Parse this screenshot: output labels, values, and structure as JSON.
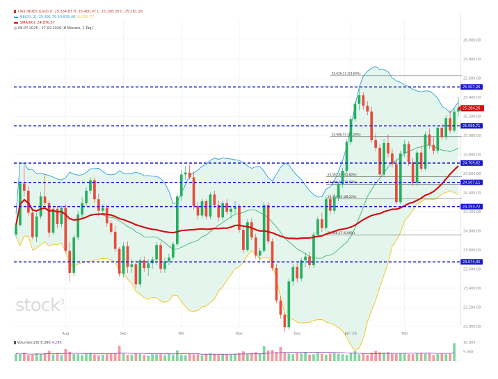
{
  "legend": {
    "main": {
      "symbol": "DAX INDEX",
      "rest": "(Last) O: 25.264,87  H: 25.400,07  L: 25.198,30  C: 25.281,16",
      "color": "#c0392b"
    },
    "bollinger": {
      "text": "BB(20, 2): 25.491,79  24.835,48",
      "pale": "24.350,77",
      "color": "#2a9fd6"
    },
    "sma": {
      "text": "SMA(80): 24.870,57",
      "color": "#cc1010"
    },
    "range": {
      "text": "08.07.2025 - 27.02.2026 (8 Monate, 1 Tag)"
    }
  },
  "watermark": {
    "text": "stock",
    "sup": "3"
  },
  "volume": {
    "label": "Volumen(20) 8,39K",
    "label_pale": "4,29K",
    "axis": [
      "10.000",
      "5.000"
    ]
  },
  "chart_data": {
    "type": "candlestick",
    "title": "DAX INDEX",
    "ylim": [
      23000,
      26200
    ],
    "xlim": [
      0,
      134
    ],
    "grid": true,
    "legend_placement": "top-left",
    "y_ticks": [
      23000,
      23200,
      23400,
      23600,
      23800,
      24000,
      24200,
      24400,
      24600,
      24800,
      25000,
      25200,
      25400,
      25600,
      25800,
      26000
    ],
    "y_tick_labels": [
      "23.000,00",
      "23.200,00",
      "23.400,00",
      "23.600,00",
      "23.800,00",
      "24.000,00",
      "24.200,00",
      "24.400,00",
      "24.600,00",
      "24.800,00",
      "25.000,00",
      "25.200,00",
      "25.400,00",
      "25.600,00",
      "25.800,00",
      "26.000,00"
    ],
    "x_ticks": [
      {
        "x": 12,
        "label": "Aug"
      },
      {
        "x": 26,
        "label": "Sep"
      },
      {
        "x": 40,
        "label": "Okt"
      },
      {
        "x": 54,
        "label": "Nov"
      },
      {
        "x": 68,
        "label": "Dez"
      },
      {
        "x": 81,
        "label": "Jan '26"
      },
      {
        "x": 94,
        "label": "Feb"
      }
    ],
    "horizontal_levels": [
      {
        "value": 25507.26,
        "label": "25.507,26"
      },
      {
        "value": 25099.71,
        "label": "25.099,71"
      },
      {
        "value": 24709.62,
        "label": "24.709,62"
      },
      {
        "value": 24507.11,
        "label": "24.507,11"
      },
      {
        "value": 24253.72,
        "label": "24.253,72"
      },
      {
        "value": 23674.35,
        "label": "23.674,35"
      }
    ],
    "last_price": {
      "value": 25284.26,
      "label": "25.284,26"
    },
    "fib_levels": [
      {
        "value": 25626.13,
        "x0": 76,
        "label": "25.626,13 (23,60%)"
      },
      {
        "value": 24986.73,
        "x0": 76,
        "label": "24.986,73 (38,20%)"
      },
      {
        "value": 24567.3,
        "x0": 75,
        "label": "24.567,30 (61,80%)"
      },
      {
        "value": 24486.4,
        "x0": 75,
        "label": "24.486,40 (78,60%)"
      },
      {
        "value": 24334.0,
        "x0": 75,
        "label": "24.334,00 (88,20%)"
      },
      {
        "value": 23956.17,
        "x0": 75,
        "label": "23.956,17 (0,00%)"
      }
    ],
    "candles": [
      {
        "o": 23960,
        "h": 24095,
        "l": 23935,
        "c": 24060
      },
      {
        "o": 24060,
        "h": 24520,
        "l": 24040,
        "c": 24495
      },
      {
        "o": 24495,
        "h": 24680,
        "l": 24360,
        "c": 24420
      },
      {
        "o": 24420,
        "h": 24470,
        "l": 24160,
        "c": 24190
      },
      {
        "o": 24190,
        "h": 24230,
        "l": 23910,
        "c": 23935
      },
      {
        "o": 23935,
        "h": 24190,
        "l": 23880,
        "c": 24150
      },
      {
        "o": 24150,
        "h": 24410,
        "l": 24120,
        "c": 24360
      },
      {
        "o": 24360,
        "h": 24600,
        "l": 24260,
        "c": 24290
      },
      {
        "o": 24290,
        "h": 24320,
        "l": 23930,
        "c": 23980
      },
      {
        "o": 23980,
        "h": 24260,
        "l": 23960,
        "c": 24230
      },
      {
        "o": 24230,
        "h": 24260,
        "l": 24030,
        "c": 24070
      },
      {
        "o": 24070,
        "h": 24260,
        "l": 24040,
        "c": 24240
      },
      {
        "o": 24240,
        "h": 24280,
        "l": 23770,
        "c": 23790
      },
      {
        "o": 23790,
        "h": 23880,
        "l": 23470,
        "c": 23560
      },
      {
        "o": 23560,
        "h": 23960,
        "l": 23520,
        "c": 23930
      },
      {
        "o": 23930,
        "h": 24210,
        "l": 23900,
        "c": 24170
      },
      {
        "o": 24170,
        "h": 24350,
        "l": 24130,
        "c": 24290
      },
      {
        "o": 24290,
        "h": 24460,
        "l": 24250,
        "c": 24420
      },
      {
        "o": 24420,
        "h": 24560,
        "l": 24390,
        "c": 24530
      },
      {
        "o": 24530,
        "h": 24560,
        "l": 24290,
        "c": 24330
      },
      {
        "o": 24330,
        "h": 24390,
        "l": 24150,
        "c": 24210
      },
      {
        "o": 24210,
        "h": 24280,
        "l": 24160,
        "c": 24240
      },
      {
        "o": 24240,
        "h": 24270,
        "l": 24040,
        "c": 24080
      },
      {
        "o": 24080,
        "h": 24110,
        "l": 23960,
        "c": 23990
      },
      {
        "o": 23990,
        "h": 24050,
        "l": 23780,
        "c": 23810
      },
      {
        "o": 23810,
        "h": 23830,
        "l": 23520,
        "c": 23550
      },
      {
        "o": 23550,
        "h": 23880,
        "l": 23510,
        "c": 23840
      },
      {
        "o": 23840,
        "h": 23890,
        "l": 23560,
        "c": 23620
      },
      {
        "o": 23620,
        "h": 23700,
        "l": 23560,
        "c": 23650
      },
      {
        "o": 23650,
        "h": 23690,
        "l": 23400,
        "c": 23440
      },
      {
        "o": 23440,
        "h": 23720,
        "l": 23410,
        "c": 23690
      },
      {
        "o": 23690,
        "h": 23730,
        "l": 23570,
        "c": 23610
      },
      {
        "o": 23610,
        "h": 23700,
        "l": 23530,
        "c": 23660
      },
      {
        "o": 23660,
        "h": 23730,
        "l": 23600,
        "c": 23700
      },
      {
        "o": 23700,
        "h": 23880,
        "l": 23640,
        "c": 23850
      },
      {
        "o": 23850,
        "h": 23880,
        "l": 23560,
        "c": 23600
      },
      {
        "o": 23600,
        "h": 23720,
        "l": 23560,
        "c": 23680
      },
      {
        "o": 23680,
        "h": 23760,
        "l": 23640,
        "c": 23720
      },
      {
        "o": 23720,
        "h": 23880,
        "l": 23700,
        "c": 23860
      },
      {
        "o": 23860,
        "h": 24390,
        "l": 23840,
        "c": 24360
      },
      {
        "o": 24360,
        "h": 24640,
        "l": 24310,
        "c": 24590
      },
      {
        "o": 24590,
        "h": 24680,
        "l": 24530,
        "c": 24610
      },
      {
        "o": 24610,
        "h": 24690,
        "l": 24540,
        "c": 24560
      },
      {
        "o": 24560,
        "h": 24620,
        "l": 24220,
        "c": 24260
      },
      {
        "o": 24260,
        "h": 24300,
        "l": 24120,
        "c": 24160
      },
      {
        "o": 24160,
        "h": 24340,
        "l": 24130,
        "c": 24310
      },
      {
        "o": 24310,
        "h": 24330,
        "l": 24120,
        "c": 24150
      },
      {
        "o": 24150,
        "h": 24400,
        "l": 24120,
        "c": 24380
      },
      {
        "o": 24380,
        "h": 24420,
        "l": 24240,
        "c": 24270
      },
      {
        "o": 24270,
        "h": 24320,
        "l": 24100,
        "c": 24140
      },
      {
        "o": 24140,
        "h": 24310,
        "l": 24110,
        "c": 24290
      },
      {
        "o": 24290,
        "h": 24330,
        "l": 24170,
        "c": 24200
      },
      {
        "o": 24200,
        "h": 24260,
        "l": 24130,
        "c": 24230
      },
      {
        "o": 24230,
        "h": 24310,
        "l": 24180,
        "c": 24250
      },
      {
        "o": 24250,
        "h": 24280,
        "l": 23980,
        "c": 24010
      },
      {
        "o": 24010,
        "h": 24060,
        "l": 23770,
        "c": 23800
      },
      {
        "o": 23800,
        "h": 24120,
        "l": 23780,
        "c": 24090
      },
      {
        "o": 24090,
        "h": 24130,
        "l": 23900,
        "c": 23930
      },
      {
        "o": 23930,
        "h": 23970,
        "l": 23710,
        "c": 23740
      },
      {
        "o": 23740,
        "h": 23820,
        "l": 23680,
        "c": 23790
      },
      {
        "o": 23790,
        "h": 24300,
        "l": 23770,
        "c": 24270
      },
      {
        "o": 24270,
        "h": 24300,
        "l": 23860,
        "c": 23890
      },
      {
        "o": 23890,
        "h": 23920,
        "l": 23580,
        "c": 23610
      },
      {
        "o": 23610,
        "h": 23650,
        "l": 23240,
        "c": 23270
      },
      {
        "o": 23270,
        "h": 23320,
        "l": 23080,
        "c": 23120
      },
      {
        "o": 23120,
        "h": 23150,
        "l": 22940,
        "c": 22990
      },
      {
        "o": 22990,
        "h": 23500,
        "l": 22960,
        "c": 23470
      },
      {
        "o": 23470,
        "h": 23650,
        "l": 23420,
        "c": 23620
      },
      {
        "o": 23620,
        "h": 23660,
        "l": 23460,
        "c": 23500
      },
      {
        "o": 23500,
        "h": 23720,
        "l": 23470,
        "c": 23690
      },
      {
        "o": 23690,
        "h": 23770,
        "l": 23620,
        "c": 23730
      },
      {
        "o": 23730,
        "h": 23780,
        "l": 23600,
        "c": 23640
      },
      {
        "o": 23640,
        "h": 23990,
        "l": 23610,
        "c": 23960
      },
      {
        "o": 23960,
        "h": 24150,
        "l": 23930,
        "c": 24120
      },
      {
        "o": 24120,
        "h": 24190,
        "l": 23990,
        "c": 24030
      },
      {
        "o": 24030,
        "h": 24360,
        "l": 24000,
        "c": 24330
      },
      {
        "o": 24330,
        "h": 24380,
        "l": 24170,
        "c": 24210
      },
      {
        "o": 24210,
        "h": 24390,
        "l": 24180,
        "c": 24350
      },
      {
        "o": 24350,
        "h": 24510,
        "l": 24310,
        "c": 24490
      },
      {
        "o": 24490,
        "h": 24660,
        "l": 24450,
        "c": 24630
      },
      {
        "o": 24630,
        "h": 24960,
        "l": 24600,
        "c": 24930
      },
      {
        "o": 24930,
        "h": 25200,
        "l": 24900,
        "c": 25170
      },
      {
        "o": 25170,
        "h": 25360,
        "l": 25140,
        "c": 25330
      },
      {
        "o": 25330,
        "h": 25490,
        "l": 25260,
        "c": 25420
      },
      {
        "o": 25420,
        "h": 25450,
        "l": 25270,
        "c": 25310
      },
      {
        "o": 25310,
        "h": 25360,
        "l": 25210,
        "c": 25250
      },
      {
        "o": 25250,
        "h": 25300,
        "l": 24920,
        "c": 24950
      },
      {
        "o": 24950,
        "h": 25020,
        "l": 24830,
        "c": 24870
      },
      {
        "o": 24870,
        "h": 24910,
        "l": 24560,
        "c": 24590
      },
      {
        "o": 24590,
        "h": 24960,
        "l": 24570,
        "c": 24920
      },
      {
        "o": 24920,
        "h": 25010,
        "l": 24770,
        "c": 24810
      },
      {
        "o": 24810,
        "h": 24860,
        "l": 24660,
        "c": 24700
      },
      {
        "o": 24700,
        "h": 24760,
        "l": 24280,
        "c": 24300
      },
      {
        "o": 24300,
        "h": 24840,
        "l": 24280,
        "c": 24810
      },
      {
        "o": 24810,
        "h": 24950,
        "l": 24770,
        "c": 24910
      },
      {
        "o": 24910,
        "h": 24940,
        "l": 24680,
        "c": 24720
      },
      {
        "o": 24720,
        "h": 24760,
        "l": 24470,
        "c": 24500
      },
      {
        "o": 24500,
        "h": 24850,
        "l": 24470,
        "c": 24820
      },
      {
        "o": 24820,
        "h": 24890,
        "l": 24620,
        "c": 24650
      },
      {
        "o": 24650,
        "h": 25040,
        "l": 24630,
        "c": 25010
      },
      {
        "o": 25010,
        "h": 25070,
        "l": 24860,
        "c": 24900
      },
      {
        "o": 24900,
        "h": 24980,
        "l": 24800,
        "c": 24840
      },
      {
        "o": 24840,
        "h": 25100,
        "l": 24810,
        "c": 25080
      },
      {
        "o": 25080,
        "h": 25120,
        "l": 24950,
        "c": 24980
      },
      {
        "o": 24980,
        "h": 25210,
        "l": 24950,
        "c": 25180
      },
      {
        "o": 25180,
        "h": 25260,
        "l": 25020,
        "c": 25050
      },
      {
        "o": 25050,
        "h": 25280,
        "l": 25030,
        "c": 25250
      },
      {
        "o": 25250,
        "h": 25400,
        "l": 25200,
        "c": 25284
      }
    ],
    "volume": [
      3900,
      3500,
      4300,
      3100,
      3300,
      4100,
      3800,
      4200,
      5400,
      3500,
      3900,
      3300,
      6300,
      4800,
      3700,
      3600,
      3200,
      3700,
      4300,
      3500,
      3000,
      3400,
      3600,
      3800,
      4200,
      8100,
      3900,
      3300,
      3400,
      4100,
      3700,
      3300,
      2800,
      3600,
      3500,
      3600,
      3200,
      3900,
      3300,
      5700,
      3400,
      3100,
      3800,
      3600,
      3600,
      3100,
      3800,
      4000,
      3700,
      3200,
      3600,
      3400,
      3300,
      3800,
      4400,
      5100,
      3600,
      4200,
      4700,
      3800,
      7900,
      5600,
      5900,
      4800,
      7400,
      4300,
      3900,
      3600,
      4100,
      3900,
      4600,
      3400,
      3600,
      4200,
      3700,
      3400,
      3800,
      4100,
      3900,
      3600,
      3200,
      4400,
      5200,
      3600,
      3900,
      3300,
      4400,
      5300,
      4600,
      4500,
      4700,
      3900,
      3800,
      4100,
      4200,
      3700,
      3600,
      4100,
      4400,
      3800,
      3900,
      3200,
      3700,
      3800,
      3600,
      3900,
      9500
    ],
    "volume_ylim": [
      0,
      10000
    ],
    "volume_avg_color": "#8e44ad",
    "colors": {
      "up": "#27ae60",
      "down": "#e74c3c",
      "band_upper": "#2a9fd6",
      "band_lower": "#f1c40f",
      "band_fill": "#e4f5ee",
      "mid": "#27ae60",
      "sma": "#d11010",
      "levels": "#1a1acc",
      "price_tag": "#d11010"
    }
  }
}
